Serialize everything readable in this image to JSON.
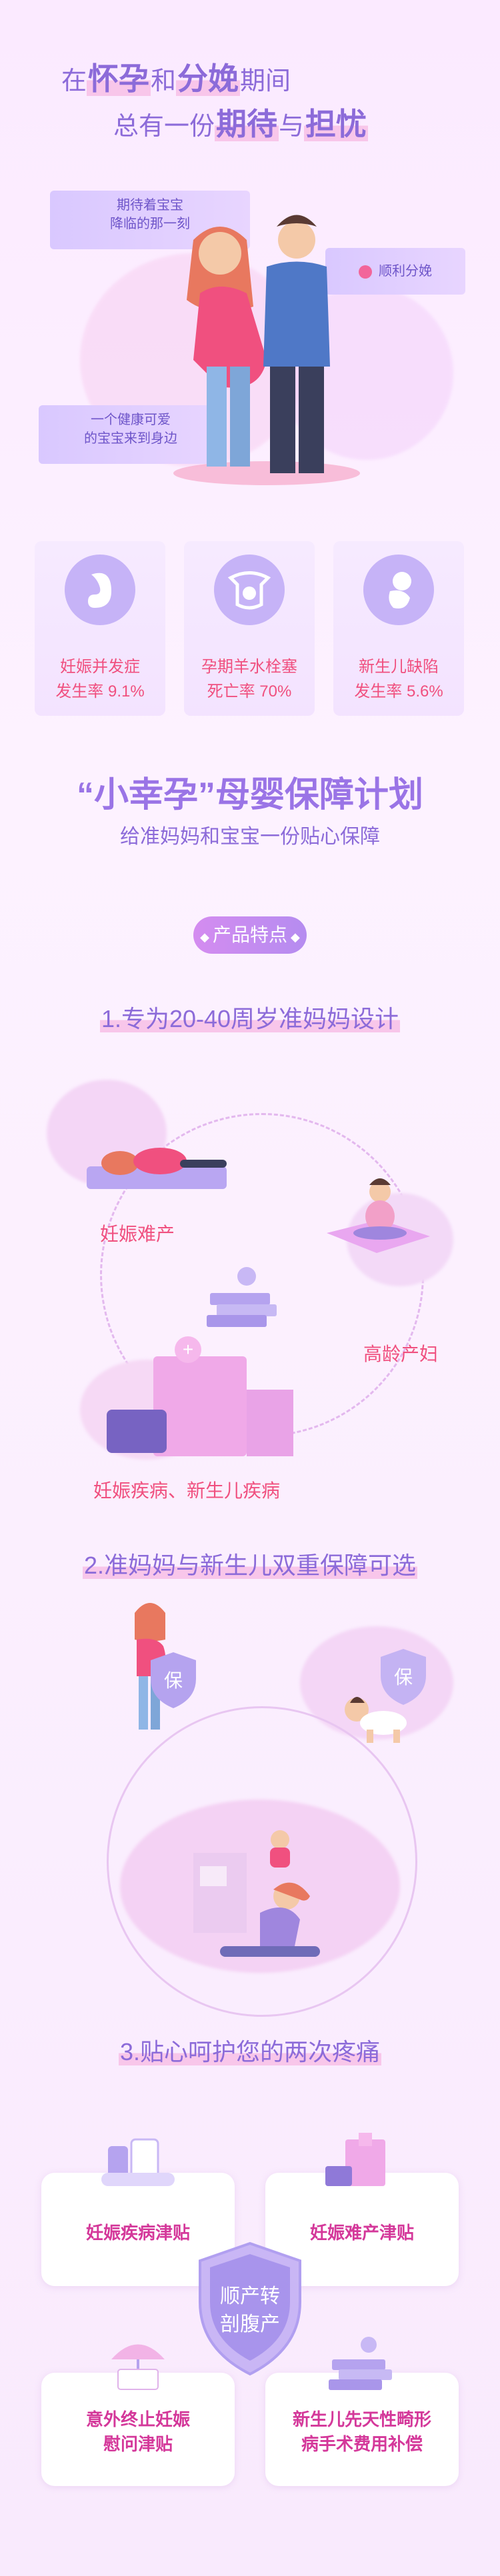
{
  "colors": {
    "accent": "#8c6bd9",
    "pink": "#f0507f",
    "magenta": "#d4389a",
    "lavender": "#c6b3f7"
  },
  "hero": {
    "line1_prefix": "在",
    "line1_em1": "怀孕",
    "line1_mid": "和",
    "line1_em2": "分娩",
    "line1_suffix": "期间",
    "line2_prefix": "总有一份",
    "line2_em1": "期待",
    "line2_mid": "与",
    "line2_em2": "担忧",
    "tag_expect_line1": "期待着宝宝",
    "tag_expect_line2": "降临的那一刻",
    "tag_delivery": "顺利分娩",
    "tag_baby_line1": "一个健康可爱",
    "tag_baby_line2": "的宝宝来到身边"
  },
  "stats": [
    {
      "icon": "embryo-icon",
      "label": "妊娠并发症",
      "value": "发生率 9.1%"
    },
    {
      "icon": "uterus-icon",
      "label": "孕期羊水栓塞",
      "value": "死亡率 70%"
    },
    {
      "icon": "newborn-icon",
      "label": "新生儿缺陷",
      "value": "发生率 5.6%"
    }
  ],
  "plan": {
    "title_quoted": "“小幸孕”",
    "title_rest": "母婴保障计划",
    "subtitle": "给准妈妈和宝宝一份贴心保障",
    "badge": "产品特点"
  },
  "feature1": {
    "title": "1.专为20-40周岁准妈妈设计",
    "label_difficult": "妊娠难产",
    "label_advanced": "高龄产妇",
    "label_disease": "妊娠疾病、新生儿疾病"
  },
  "feature2": {
    "title": "2.准妈妈与新生儿双重保障可选",
    "shield_text": "保"
  },
  "feature3": {
    "title": "3.贴心呵护您的两次疼痛",
    "card1": "妊娠疾病津贴",
    "card2": "妊娠难产津贴",
    "shield_line1": "顺产转",
    "shield_line2": "剖腹产",
    "card3_line1": "意外终止妊娠",
    "card3_line2": "慰问津贴",
    "card4_line1": "新生儿先天性畸形",
    "card4_line2": "病手术费用补偿"
  }
}
